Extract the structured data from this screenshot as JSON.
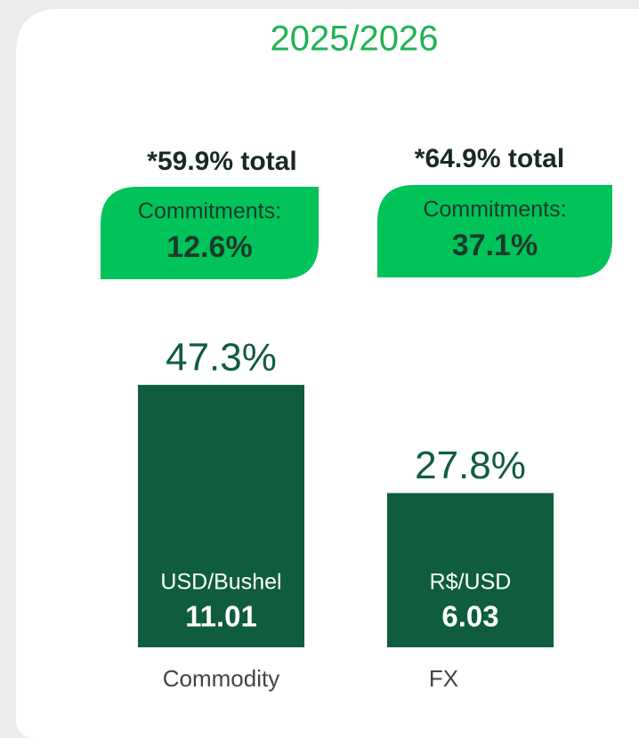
{
  "chart_data": {
    "type": "bar",
    "title": "2025/2026",
    "categories": [
      "Commodity",
      "FX"
    ],
    "values": [
      47.3,
      27.8
    ],
    "value_labels": [
      "47.3%",
      "27.8%"
    ],
    "color": "#0f5c3e",
    "units": [
      "USD/Bushel",
      "R$/USD"
    ],
    "prices": [
      11.01,
      6.03
    ],
    "commitments": {
      "label": "Commitments:",
      "values": [
        12.6,
        37.1
      ],
      "value_labels": [
        "12.6%",
        "37.1%"
      ],
      "color": "#00c35a"
    },
    "totals": {
      "values": [
        59.9,
        64.9
      ],
      "value_labels": [
        "*59.9% total",
        "*64.9% total"
      ]
    }
  }
}
